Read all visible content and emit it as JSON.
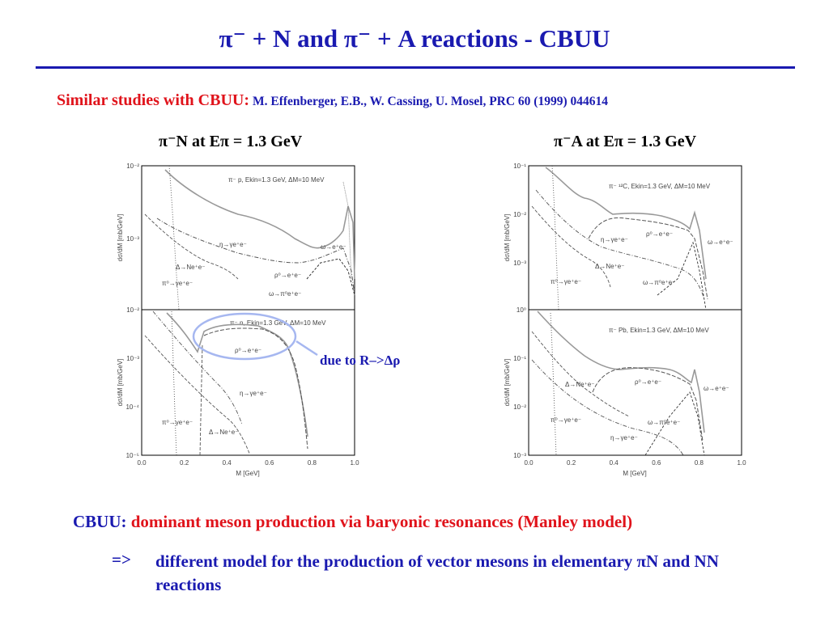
{
  "slide": {
    "title": "π⁻ + N and π⁻ + A reactions - CBUU",
    "subtitle_lead": "Similar studies with CBUU:",
    "subtitle_ref": "M. Effenberger, E.B., W. Cassing, U. Mosel,  PRC 60 (1999) 044614",
    "left_title": "π⁻N at Eπ = 1.3 GeV",
    "right_title": "π⁻A at Eπ = 1.3 GeV",
    "annotation": "due to R–>Δρ",
    "conclusion_label": "CBUU:",
    "conclusion_text": "dominant meson production via baryonic resonances (Manley model)",
    "implication_arrow": "=>",
    "implication_text": "different model for the production of  vector mesons in elementary πN and NN reactions"
  },
  "figures": [
    {
      "panels": [
        {
          "label": "π⁻ p, Ekin=1.3 GeV, ΔM=10 MeV",
          "ylabel": "dσ/dM [mb/GeV]",
          "yticks": [
            "10⁻²",
            "10⁻³"
          ],
          "ymin_exp": -3.9,
          "ymax_exp": -2,
          "channels": [
            "η→γe⁺e⁻",
            "Δ→Ne⁺e⁻",
            "π⁰→γe⁺e⁻",
            "ρ⁰→e⁺e⁻",
            "ω→π⁰e⁺e⁻",
            "ω→e⁺e⁻"
          ]
        },
        {
          "label": "π⁻ n, Ekin=1.3 GeV, ΔM=10 MeV",
          "ylabel": "dσ/dM [mb/GeV]",
          "yticks": [
            "10⁻²",
            "10⁻³",
            "10⁻⁴",
            "10⁻⁵"
          ],
          "ymin_exp": -5,
          "ymax_exp": -2,
          "channels": [
            "ρ⁰→e⁺e⁻",
            "η→γe⁺e⁻",
            "π⁰→γe⁺e⁻",
            "Δ→Ne⁺e⁻"
          ]
        }
      ],
      "xlabel": "M [GeV]",
      "xticks": [
        "0.0",
        "0.2",
        "0.4",
        "0.6",
        "0.8",
        "1.0"
      ]
    },
    {
      "panels": [
        {
          "label": "π⁻ ¹²C, Ekin=1.3 GeV, ΔM=10 MeV",
          "ylabel": "dσ/dM [mb/GeV]",
          "yticks": [
            "10⁻¹",
            "10⁻²",
            "10⁻³"
          ],
          "ymin_exp": -3.9,
          "ymax_exp": -1,
          "channels": [
            "η→γe⁺e⁻",
            "ρ⁰→e⁺e⁻",
            "ω→e⁺e⁻",
            "Δ→Ne⁺e⁻",
            "π⁰→γe⁺e⁻",
            "ω→π⁰e⁺e⁻"
          ]
        },
        {
          "label": "π⁻ Pb, Ekin=1.3 GeV, ΔM=10 MeV",
          "ylabel": "dσ/dM [mb/GeV]",
          "yticks": [
            "10⁰",
            "10⁻¹",
            "10⁻²",
            "10⁻³"
          ],
          "ymin_exp": -3,
          "ymax_exp": 0,
          "channels": [
            "Δ→Ne⁺e⁻",
            "ρ⁰→e⁺e⁻",
            "ω→e⁺e⁻",
            "π⁰→γe⁺e⁻",
            "ω→π⁰e⁺e⁻",
            "η→γe⁺e⁻"
          ]
        }
      ],
      "xlabel": "M [GeV]",
      "xticks": [
        "0.0",
        "0.2",
        "0.4",
        "0.6",
        "0.8",
        "1.0"
      ]
    }
  ],
  "colors": {
    "title": "#1a1ab0",
    "accent": "#e0131b",
    "highlight": "#a6b7f0"
  }
}
